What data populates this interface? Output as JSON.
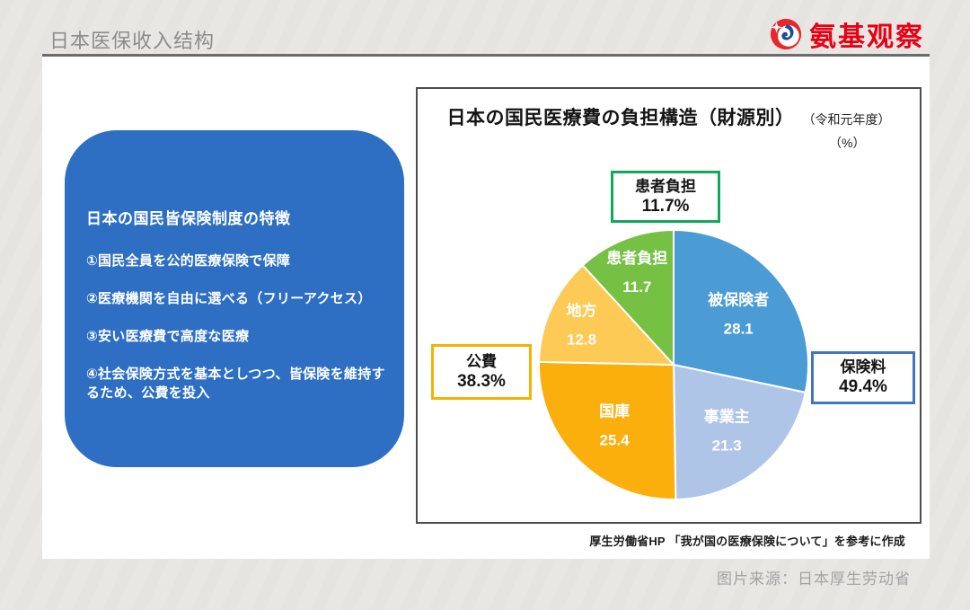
{
  "page": {
    "title": "日本医保收入结构",
    "brand": "氨基观察",
    "image_credit": "图片来源：日本厚生劳动省"
  },
  "info_card": {
    "title": "日本の国民皆保険制度の特徴",
    "bullets": [
      "①国民全員を公的医療保険で保障",
      "②医療機関を自由に選べる（フリーアクセス）",
      "③安い医療費で高度な医療",
      "④社会保険方式を基本としつつ、皆保険を維持するため、公費を投入"
    ]
  },
  "chart_panel": {
    "title": "日本の国民医療費の負担構造（財源別）",
    "subtitle": "（令和元年度）",
    "unit": "（%）",
    "source": "厚生労働省HP 「我が国の医療保険について」を参考に作成",
    "callouts": [
      {
        "label": "患者負担",
        "value": "11.7%",
        "color": "#0fa958"
      },
      {
        "label": "公費",
        "value": "38.3%",
        "color": "#f2b301"
      },
      {
        "label": "保険料",
        "value": "49.4%",
        "color": "#4472c4"
      }
    ]
  },
  "chart_data": {
    "type": "pie",
    "title": "日本の国民医療費の負担構造（財源別）",
    "period": "令和元年度",
    "unit": "%",
    "start_angle_deg": 0,
    "direction": "clockwise",
    "slices": [
      {
        "label": "被保険者",
        "value": 28.1,
        "color": "#4b9bd5"
      },
      {
        "label": "事業主",
        "value": 21.3,
        "color": "#afc5e8"
      },
      {
        "label": "国庫",
        "value": 25.4,
        "color": "#fbaf0d"
      },
      {
        "label": "地方",
        "value": 12.8,
        "color": "#fcca55"
      },
      {
        "label": "患者負担",
        "value": 11.7,
        "color": "#76c043"
      }
    ],
    "groups": [
      {
        "label": "保険料",
        "value": 49.4,
        "members": [
          "被保険者",
          "事業主"
        ]
      },
      {
        "label": "公費",
        "value": 38.3,
        "members": [
          "国庫",
          "地方"
        ]
      },
      {
        "label": "患者負担",
        "value": 11.7,
        "members": [
          "患者負担"
        ]
      }
    ],
    "legend_position": "none",
    "grid": false
  }
}
